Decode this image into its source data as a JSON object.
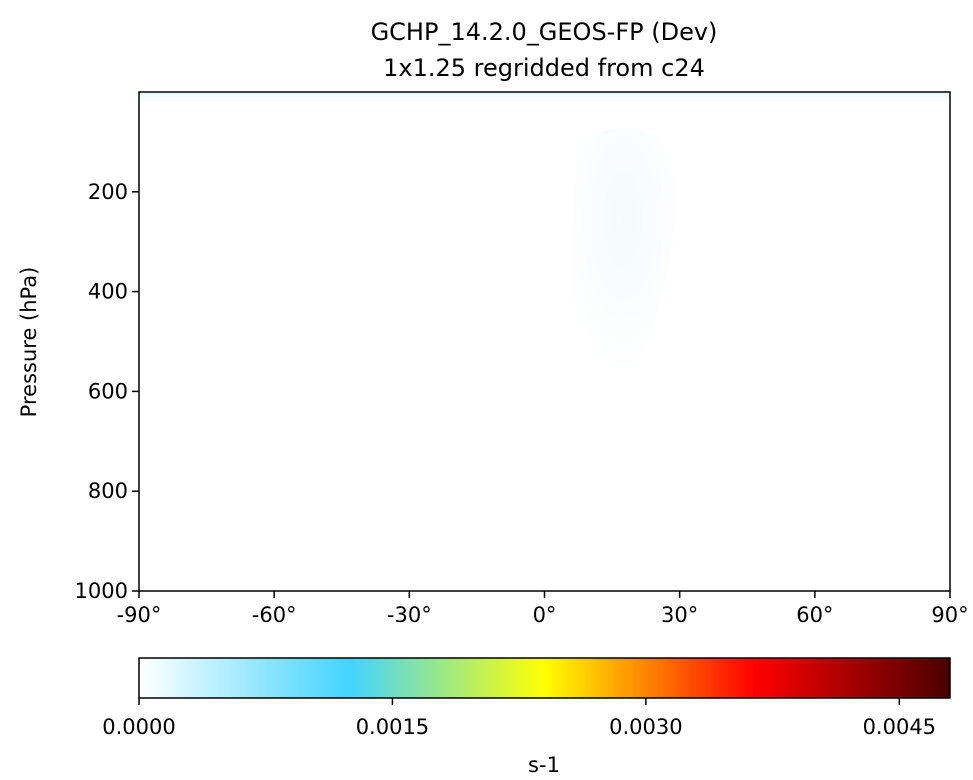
{
  "chart_data": {
    "type": "heatmap",
    "title": "GCHP_14.2.0_GEOS-FP (Dev)",
    "subtitle": "1x1.25 regridded from c24",
    "ylabel": "Pressure (hPa)",
    "x_ticks": [
      "-90°",
      "-60°",
      "-30°",
      "0°",
      "30°",
      "60°",
      "90°"
    ],
    "x_tick_values": [
      -90,
      -60,
      -30,
      0,
      30,
      60,
      90
    ],
    "y_ticks": [
      "200",
      "400",
      "600",
      "800",
      "1000"
    ],
    "y_tick_values": [
      200,
      400,
      600,
      800,
      1000
    ],
    "xlim": [
      -90,
      90
    ],
    "ylim": [
      1000,
      0
    ],
    "colorbar": {
      "label": "s-1",
      "ticks": [
        "0.0000",
        "0.0015",
        "0.0030",
        "0.0045"
      ],
      "tick_values": [
        0,
        0.0015,
        0.003,
        0.0045
      ],
      "range": [
        0,
        0.0048
      ],
      "colormap": [
        "#ffffff",
        "#42d4ff",
        "#ffff00",
        "#ff0000",
        "#4a0000"
      ]
    },
    "field": [
      {
        "lat_range": [
          -90,
          90
        ],
        "p_range": [
          0,
          20
        ],
        "value": 5e-05
      },
      {
        "lat_range": [
          5,
          30
        ],
        "p_range": [
          100,
          600
        ],
        "value": 3e-05
      }
    ]
  }
}
